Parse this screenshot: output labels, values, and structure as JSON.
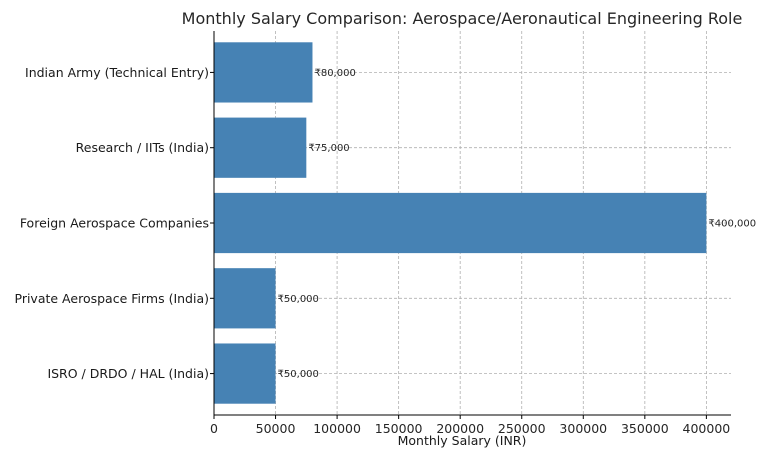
{
  "chart_data": {
    "type": "bar",
    "orientation": "horizontal",
    "title": "Monthly Salary Comparison: Aerospace/Aeronautical Engineering Role",
    "xlabel": "Monthly Salary (INR)",
    "ylabel": "",
    "categories": [
      "ISRO / DRDO / HAL (India)",
      "Private Aerospace Firms (India)",
      "Foreign Aerospace Companies",
      "Research / IITs (India)",
      "Indian Army (Technical Entry)"
    ],
    "values": [
      50000,
      50000,
      400000,
      75000,
      80000
    ],
    "data_labels": [
      "₹50,000",
      "₹50,000",
      "₹400,000",
      "₹75,000",
      "₹80,000"
    ],
    "xlim": [
      0,
      420000
    ],
    "xticks": [
      0,
      50000,
      100000,
      150000,
      200000,
      250000,
      300000,
      350000,
      400000
    ],
    "xtick_labels": [
      "0",
      "50000",
      "100000",
      "150000",
      "200000",
      "250000",
      "300000",
      "350000",
      "400000"
    ],
    "grid": true,
    "bar_color": "#4682b4"
  }
}
